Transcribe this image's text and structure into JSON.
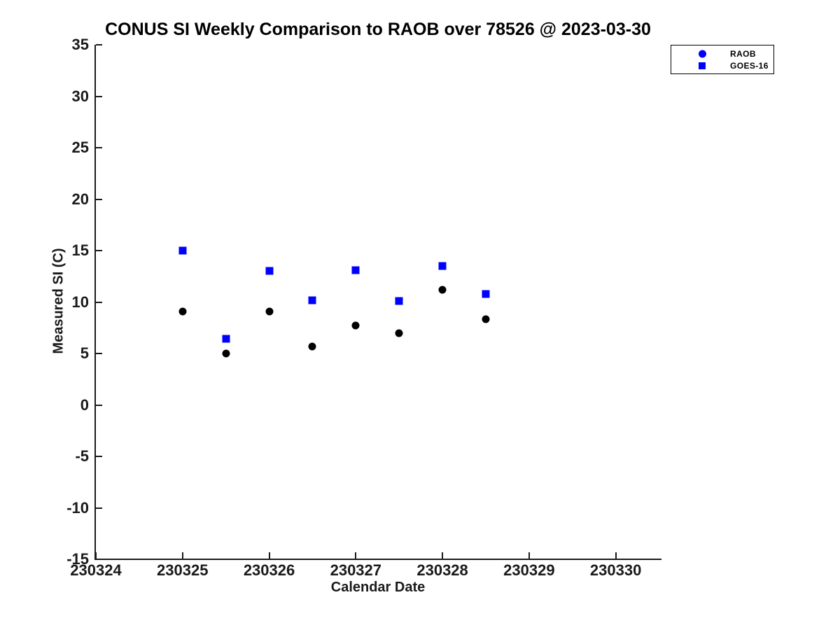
{
  "chart_data": {
    "type": "scatter",
    "title": "CONUS SI Weekly Comparison to RAOB over 78526 @ 2023-03-30",
    "xlabel": "Calendar Date",
    "ylabel": "Measured SI (C)",
    "xlim": [
      230324,
      230330.52
    ],
    "ylim": [
      -15,
      35
    ],
    "xticks": [
      230324,
      230325,
      230326,
      230327,
      230328,
      230329,
      230330
    ],
    "xtick_labels": [
      "230324",
      "230325",
      "230326",
      "230327",
      "230328",
      "230329",
      "230330"
    ],
    "yticks": [
      -15,
      -10,
      -5,
      0,
      5,
      10,
      15,
      20,
      25,
      30,
      35
    ],
    "ytick_labels": [
      "-15",
      "-10",
      "-5",
      "0",
      "5",
      "10",
      "15",
      "20",
      "25",
      "30",
      "35"
    ],
    "x": [
      230325,
      230325.5,
      230326,
      230326.5,
      230327,
      230327.5,
      230328,
      230328.5
    ],
    "series": [
      {
        "name": "RAOB",
        "marker": "circle",
        "color": "#000000",
        "legend_color": "#0000ff",
        "values": [
          9.1,
          5.0,
          9.1,
          5.7,
          7.7,
          7.0,
          11.2,
          8.3
        ]
      },
      {
        "name": "GOES-16",
        "marker": "square",
        "color": "#0000ff",
        "legend_color": "#0000ff",
        "values": [
          15.0,
          6.4,
          13.0,
          10.2,
          13.1,
          10.1,
          13.5,
          10.8
        ]
      }
    ],
    "legend_position": "outside-top-right",
    "grid": false,
    "axis_color": "#1a1a1a",
    "background": "#ffffff"
  }
}
